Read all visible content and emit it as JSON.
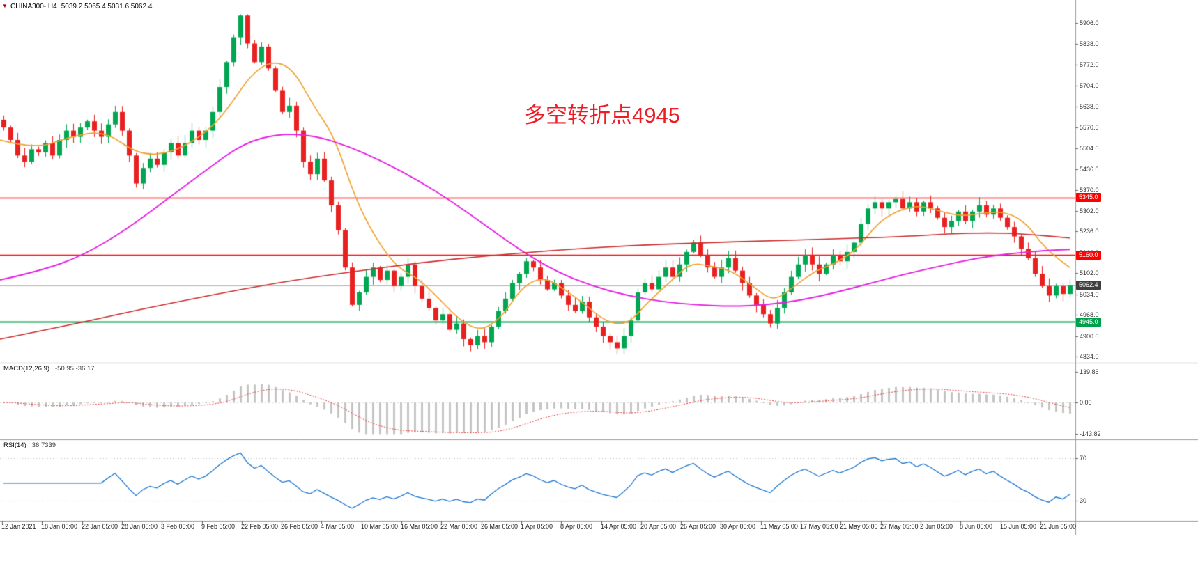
{
  "header": {
    "marker": "▼",
    "symbol": "CHINA300-,H4",
    "ohlc": "5039.2 5065.4 5031.6 5062.4"
  },
  "annotation": {
    "text": "多空转折点4945",
    "color": "#ee1c25"
  },
  "chart_data": {
    "type": "candlestick",
    "symbol": "CHINA300-",
    "timeframe": "H4",
    "ohlc_display": {
      "open": "5039.2",
      "high": "5065.4",
      "low": "5031.6",
      "close": "5062.4"
    },
    "candle_colors": {
      "up": "#00a651",
      "down": "#e8201f"
    },
    "price_axis": {
      "min": 4834,
      "max": 5906,
      "ticks": [
        "5906.0",
        "5838.0",
        "5772.0",
        "5704.0",
        "5638.0",
        "5570.0",
        "5504.0",
        "5436.0",
        "5370.0",
        "5302.0",
        "5236.0",
        "5168.0",
        "5102.0",
        "5034.0",
        "4968.0",
        "4900.0",
        "4834.0"
      ]
    },
    "closes": [
      5570,
      5530,
      5480,
      5460,
      5500,
      5490,
      5520,
      5480,
      5530,
      5560,
      5540,
      5570,
      5590,
      5560,
      5540,
      5580,
      5620,
      5560,
      5480,
      5390,
      5440,
      5470,
      5450,
      5490,
      5520,
      5480,
      5520,
      5560,
      5530,
      5560,
      5620,
      5700,
      5780,
      5860,
      5930,
      5840,
      5780,
      5830,
      5760,
      5690,
      5620,
      5640,
      5560,
      5460,
      5420,
      5470,
      5400,
      5320,
      5240,
      5120,
      5000,
      5040,
      5090,
      5120,
      5080,
      5110,
      5060,
      5090,
      5130,
      5060,
      5020,
      4990,
      4950,
      4970,
      4920,
      4940,
      4890,
      4870,
      4900,
      4880,
      4930,
      4980,
      5020,
      5070,
      5100,
      5140,
      5120,
      5080,
      5050,
      5070,
      5030,
      5000,
      4980,
      5010,
      4960,
      4930,
      4900,
      4880,
      4860,
      4900,
      4950,
      5040,
      5070,
      5050,
      5090,
      5120,
      5090,
      5130,
      5170,
      5200,
      5160,
      5120,
      5090,
      5120,
      5150,
      5110,
      5070,
      5030,
      5000,
      4970,
      4940,
      4990,
      5040,
      5090,
      5130,
      5160,
      5130,
      5100,
      5130,
      5160,
      5140,
      5170,
      5200,
      5260,
      5310,
      5330,
      5310,
      5330,
      5340,
      5310,
      5330,
      5300,
      5330,
      5310,
      5280,
      5250,
      5270,
      5300,
      5270,
      5300,
      5320,
      5290,
      5310,
      5280,
      5250,
      5220,
      5180,
      5150,
      5100,
      5060,
      5030,
      5060,
      5035,
      5062.4
    ],
    "hlines": [
      {
        "price": 5345,
        "color": "#ff0000",
        "width": 1.4
      },
      {
        "price": 5160,
        "color": "#ff0000",
        "width": 1.4
      },
      {
        "price": 4945,
        "color": "#00a04a",
        "width": 2
      },
      {
        "price": 5062.4,
        "color": "#b0b0b0",
        "width": 1
      }
    ],
    "price_tags": [
      {
        "label": "5345.0",
        "price": 5345,
        "bg": "#ff0000"
      },
      {
        "label": "5160.0",
        "price": 5160,
        "bg": "#ff0000"
      },
      {
        "label": "5062.4",
        "price": 5062.4,
        "bg": "#3f3f3f"
      },
      {
        "label": "4945.0",
        "price": 4945,
        "bg": "#00a04a"
      }
    ],
    "moving_averages": [
      {
        "name": "ma-fast-orange",
        "color": "#efa233",
        "width": 1.7,
        "points": [
          [
            0,
            5530
          ],
          [
            50,
            5500
          ],
          [
            100,
            5540
          ],
          [
            150,
            5560
          ],
          [
            200,
            5480
          ],
          [
            250,
            5490
          ],
          [
            300,
            5560
          ],
          [
            330,
            5640
          ],
          [
            360,
            5740
          ],
          [
            390,
            5785
          ],
          [
            420,
            5760
          ],
          [
            450,
            5640
          ],
          [
            480,
            5540
          ],
          [
            510,
            5340
          ],
          [
            540,
            5210
          ],
          [
            570,
            5120
          ],
          [
            600,
            5085
          ],
          [
            630,
            5020
          ],
          [
            660,
            4950
          ],
          [
            690,
            4915
          ],
          [
            720,
            4960
          ],
          [
            750,
            5060
          ],
          [
            780,
            5090
          ],
          [
            810,
            5050
          ],
          [
            840,
            5000
          ],
          [
            870,
            4945
          ],
          [
            900,
            4935
          ],
          [
            930,
            5010
          ],
          [
            960,
            5070
          ],
          [
            990,
            5135
          ],
          [
            1020,
            5125
          ],
          [
            1050,
            5110
          ],
          [
            1080,
            5060
          ],
          [
            1110,
            5010
          ],
          [
            1140,
            5060
          ],
          [
            1170,
            5110
          ],
          [
            1200,
            5135
          ],
          [
            1230,
            5180
          ],
          [
            1260,
            5265
          ],
          [
            1290,
            5305
          ],
          [
            1320,
            5320
          ],
          [
            1350,
            5300
          ],
          [
            1380,
            5285
          ],
          [
            1410,
            5295
          ],
          [
            1440,
            5300
          ],
          [
            1470,
            5270
          ],
          [
            1500,
            5180
          ],
          [
            1535,
            5120
          ]
        ]
      },
      {
        "name": "ma-mid-magenta",
        "color": "#e520e5",
        "width": 1.9,
        "points": [
          [
            0,
            5080
          ],
          [
            60,
            5110
          ],
          [
            120,
            5160
          ],
          [
            180,
            5240
          ],
          [
            240,
            5340
          ],
          [
            300,
            5440
          ],
          [
            350,
            5520
          ],
          [
            400,
            5550
          ],
          [
            450,
            5545
          ],
          [
            500,
            5510
          ],
          [
            550,
            5460
          ],
          [
            600,
            5400
          ],
          [
            650,
            5330
          ],
          [
            700,
            5250
          ],
          [
            750,
            5170
          ],
          [
            800,
            5105
          ],
          [
            850,
            5060
          ],
          [
            900,
            5030
          ],
          [
            950,
            5010
          ],
          [
            1000,
            5000
          ],
          [
            1050,
            4995
          ],
          [
            1100,
            5000
          ],
          [
            1150,
            5015
          ],
          [
            1200,
            5040
          ],
          [
            1250,
            5070
          ],
          [
            1300,
            5100
          ],
          [
            1350,
            5125
          ],
          [
            1400,
            5150
          ],
          [
            1450,
            5165
          ],
          [
            1500,
            5175
          ],
          [
            1535,
            5178
          ]
        ]
      },
      {
        "name": "ma-slow-red",
        "color": "#cc2a2a",
        "width": 1.6,
        "points": [
          [
            0,
            4890
          ],
          [
            100,
            4935
          ],
          [
            200,
            4985
          ],
          [
            300,
            5030
          ],
          [
            400,
            5072
          ],
          [
            500,
            5105
          ],
          [
            600,
            5135
          ],
          [
            700,
            5158
          ],
          [
            800,
            5176
          ],
          [
            900,
            5190
          ],
          [
            1000,
            5199
          ],
          [
            1100,
            5206
          ],
          [
            1200,
            5212
          ],
          [
            1300,
            5220
          ],
          [
            1360,
            5228
          ],
          [
            1420,
            5232
          ],
          [
            1470,
            5228
          ],
          [
            1535,
            5215
          ]
        ]
      }
    ],
    "indicators": {
      "macd": {
        "label": "MACD(12,26,9)",
        "values_text": "-50.95 -36.17",
        "params": [
          12,
          26,
          9
        ],
        "axis_ticks": [
          "139.86",
          "0.00",
          "-143.82"
        ]
      },
      "rsi": {
        "label": "RSI(14)",
        "value_text": "36.7339",
        "period": 14,
        "levels": [
          70,
          30
        ],
        "axis_ticks": [
          "70",
          "30"
        ]
      }
    },
    "time_axis": {
      "labels": [
        "12 Jan 2021",
        "18 Jan 05:00",
        "22 Jan 05:00",
        "28 Jan 05:00",
        "3 Feb 05:00",
        "9 Feb 05:00",
        "22 Feb 05:00",
        "26 Feb 05:00",
        "4 Mar 05:00",
        "10 Mar 05:00",
        "16 Mar 05:00",
        "22 Mar 05:00",
        "26 Mar 05:00",
        "1 Apr 05:00",
        "8 Apr 05:00",
        "14 Apr 05:00",
        "20 Apr 05:00",
        "26 Apr 05:00",
        "30 Apr 05:00",
        "11 May 05:00",
        "17 May 05:00",
        "21 May 05:00",
        "27 May 05:00",
        "2 Jun 05:00",
        "8 Jun 05:00",
        "15 Jun 05:00",
        "21 Jun 05:00"
      ]
    }
  }
}
